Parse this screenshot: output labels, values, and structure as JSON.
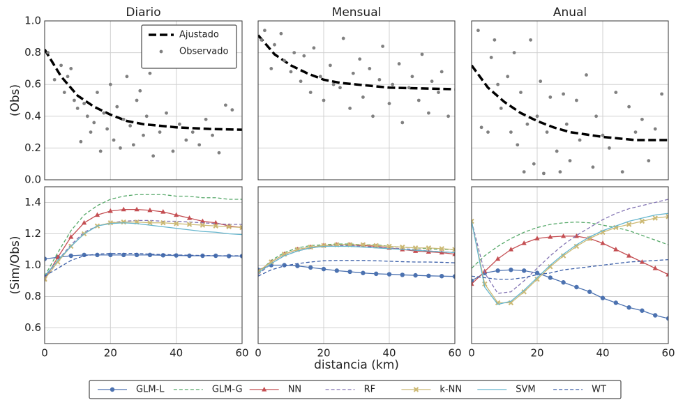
{
  "chart_data": [
    {
      "type": "scatter",
      "title": "Diario",
      "ylabel": "(Obs)",
      "xlim": [
        0,
        60
      ],
      "ylim": [
        0,
        1
      ],
      "xticks": [
        0,
        20,
        40,
        60
      ],
      "yticks": [
        {
          "value": 0,
          "label": "0.0"
        },
        0.2,
        0.4,
        0.6,
        0.8,
        {
          "value": 1,
          "label": "1.0"
        }
      ],
      "show_xtick_labels": false,
      "show_ytick_labels": true,
      "grid": true,
      "legend": "upper right",
      "series": [
        {
          "name": "Ajustado",
          "color": "#000000",
          "linestyle": "dashed",
          "linewidth": 3.5,
          "marker": "none",
          "x": [
            0,
            5,
            10,
            15,
            20,
            25,
            30,
            40,
            50,
            60
          ],
          "values": [
            0.82,
            0.65,
            0.53,
            0.46,
            0.41,
            0.37,
            0.35,
            0.33,
            0.32,
            0.315
          ]
        },
        {
          "name": "Observado",
          "color": "#808080",
          "linestyle": "none",
          "marker": "dot",
          "x": [
            1,
            3,
            5,
            6,
            7,
            8,
            9,
            10,
            11,
            12,
            13,
            14,
            15,
            16,
            17,
            18,
            19,
            20,
            21,
            22,
            23,
            24,
            25,
            26,
            27,
            28,
            29,
            30,
            31,
            32,
            33,
            35,
            37,
            39,
            41,
            43,
            45,
            47,
            49,
            51,
            53,
            55,
            57
          ],
          "values": [
            0.8,
            0.63,
            0.72,
            0.55,
            0.65,
            0.7,
            0.5,
            0.45,
            0.24,
            0.48,
            0.4,
            0.3,
            0.36,
            0.55,
            0.18,
            0.42,
            0.32,
            0.6,
            0.25,
            0.46,
            0.2,
            0.38,
            0.65,
            0.34,
            0.22,
            0.5,
            0.56,
            0.28,
            0.4,
            0.67,
            0.15,
            0.3,
            0.42,
            0.18,
            0.35,
            0.25,
            0.3,
            0.22,
            0.38,
            0.28,
            0.17,
            0.47,
            0.44
          ]
        }
      ]
    },
    {
      "type": "scatter",
      "title": "Mensual",
      "xlim": [
        0,
        60
      ],
      "ylim": [
        0,
        1
      ],
      "xticks": [
        0,
        20,
        40,
        60
      ],
      "yticks": [
        0,
        0.2,
        0.4,
        0.6,
        0.8,
        1
      ],
      "show_xtick_labels": false,
      "show_ytick_labels": false,
      "grid": true,
      "series": [
        {
          "color": "#000000",
          "linestyle": "dashed",
          "linewidth": 3.5,
          "marker": "none",
          "x": [
            0,
            5,
            10,
            15,
            20,
            25,
            30,
            40,
            50,
            60
          ],
          "values": [
            0.91,
            0.79,
            0.72,
            0.67,
            0.63,
            0.61,
            0.6,
            0.58,
            0.575,
            0.57
          ]
        },
        {
          "color": "#808080",
          "linestyle": "none",
          "marker": "dot",
          "x": [
            1,
            2,
            4,
            5,
            7,
            8,
            10,
            11,
            13,
            14,
            16,
            17,
            19,
            20,
            22,
            23,
            25,
            26,
            28,
            29,
            31,
            32,
            34,
            35,
            37,
            38,
            40,
            41,
            43,
            44,
            46,
            47,
            49,
            50,
            52,
            53,
            55,
            56,
            58
          ],
          "values": [
            0.88,
            0.94,
            0.7,
            0.85,
            0.92,
            0.75,
            0.68,
            0.8,
            0.62,
            0.78,
            0.55,
            0.83,
            0.65,
            0.5,
            0.72,
            0.6,
            0.58,
            0.89,
            0.45,
            0.67,
            0.76,
            0.52,
            0.7,
            0.4,
            0.63,
            0.84,
            0.48,
            0.6,
            0.73,
            0.36,
            0.58,
            0.65,
            0.5,
            0.79,
            0.42,
            0.62,
            0.55,
            0.68,
            0.4
          ]
        }
      ]
    },
    {
      "type": "scatter",
      "title": "Anual",
      "xlim": [
        0,
        60
      ],
      "ylim": [
        0,
        1
      ],
      "xticks": [
        0,
        20,
        40,
        60
      ],
      "yticks": [
        0,
        0.2,
        0.4,
        0.6,
        0.8,
        1
      ],
      "show_xtick_labels": false,
      "show_ytick_labels": false,
      "grid": true,
      "series": [
        {
          "color": "#000000",
          "linestyle": "dashed",
          "linewidth": 3.5,
          "marker": "none",
          "x": [
            0,
            5,
            10,
            15,
            20,
            25,
            30,
            40,
            50,
            60
          ],
          "values": [
            0.72,
            0.58,
            0.49,
            0.42,
            0.37,
            0.33,
            0.3,
            0.27,
            0.25,
            0.25
          ]
        },
        {
          "color": "#808080",
          "linestyle": "none",
          "marker": "dot",
          "x": [
            2,
            3,
            5,
            6,
            7,
            8,
            9,
            11,
            12,
            13,
            14,
            15,
            16,
            17,
            18,
            19,
            20,
            21,
            22,
            23,
            24,
            26,
            27,
            28,
            29,
            30,
            32,
            33,
            35,
            37,
            38,
            40,
            42,
            44,
            46,
            48,
            50,
            52,
            54,
            56,
            58
          ],
          "values": [
            0.94,
            0.33,
            0.3,
            0.77,
            0.88,
            0.6,
            0.45,
            0.65,
            0.3,
            0.8,
            0.22,
            0.55,
            0.05,
            0.35,
            0.88,
            0.1,
            0.4,
            0.62,
            0.04,
            0.3,
            0.52,
            0.18,
            0.05,
            0.54,
            0.35,
            0.12,
            0.5,
            0.25,
            0.66,
            0.08,
            0.4,
            0.28,
            0.2,
            0.55,
            0.05,
            0.46,
            0.3,
            0.38,
            0.12,
            0.32,
            0.54
          ]
        }
      ]
    },
    {
      "type": "line",
      "ylabel": "(Sim/Obs)",
      "xlim": [
        0,
        60
      ],
      "ylim": [
        0.5,
        1.5
      ],
      "xticks": [
        0,
        20,
        40,
        60
      ],
      "yticks": [
        0.6,
        0.8,
        {
          "value": 1,
          "label": "1.0"
        },
        1.2,
        1.4
      ],
      "show_xtick_labels": true,
      "show_ytick_labels": true,
      "grid": true,
      "legend": "lower center",
      "x": [
        0,
        4,
        8,
        12,
        16,
        20,
        24,
        28,
        32,
        36,
        40,
        44,
        48,
        52,
        56,
        60
      ],
      "series": [
        {
          "name": "GLM-L",
          "color": "#4c72b0",
          "linestyle": "solid",
          "marker": "circle",
          "values": [
            1.04,
            1.05,
            1.06,
            1.065,
            1.065,
            1.065,
            1.065,
            1.065,
            1.065,
            1.063,
            1.062,
            1.06,
            1.06,
            1.06,
            1.058,
            1.058
          ]
        },
        {
          "name": "GLM-G",
          "color": "#55a868",
          "linestyle": "dashed",
          "marker": "none",
          "values": [
            0.93,
            1.08,
            1.22,
            1.32,
            1.38,
            1.42,
            1.44,
            1.45,
            1.45,
            1.45,
            1.44,
            1.44,
            1.43,
            1.43,
            1.42,
            1.42
          ]
        },
        {
          "name": "NN",
          "color": "#c44e52",
          "linestyle": "solid",
          "marker": "triangle",
          "values": [
            0.91,
            1.05,
            1.18,
            1.27,
            1.32,
            1.345,
            1.355,
            1.355,
            1.35,
            1.34,
            1.32,
            1.3,
            1.28,
            1.27,
            1.25,
            1.24
          ]
        },
        {
          "name": "RF",
          "color": "#8172b2",
          "linestyle": "dashed",
          "marker": "none",
          "values": [
            0.92,
            1.03,
            1.13,
            1.21,
            1.25,
            1.27,
            1.28,
            1.285,
            1.285,
            1.28,
            1.28,
            1.275,
            1.27,
            1.265,
            1.26,
            1.26
          ]
        },
        {
          "name": "k-NN",
          "color": "#ccb974",
          "linestyle": "solid",
          "marker": "x",
          "values": [
            0.91,
            1.02,
            1.12,
            1.2,
            1.25,
            1.27,
            1.275,
            1.275,
            1.27,
            1.27,
            1.265,
            1.26,
            1.255,
            1.25,
            1.245,
            1.24
          ]
        },
        {
          "name": "SVM",
          "color": "#64b5cd",
          "linestyle": "solid",
          "marker": "none",
          "values": [
            0.93,
            1.03,
            1.12,
            1.2,
            1.25,
            1.265,
            1.27,
            1.265,
            1.255,
            1.245,
            1.235,
            1.225,
            1.215,
            1.21,
            1.2,
            1.195
          ]
        },
        {
          "name": "WT",
          "color": "#3a5ea8",
          "linestyle": "dashed",
          "marker": "none",
          "values": [
            0.93,
            0.98,
            1.03,
            1.06,
            1.07,
            1.075,
            1.075,
            1.075,
            1.07,
            1.068,
            1.065,
            1.063,
            1.062,
            1.06,
            1.06,
            1.06
          ]
        }
      ]
    },
    {
      "type": "line",
      "xlabel": "distancia (km)",
      "xlim": [
        0,
        60
      ],
      "ylim": [
        0.5,
        1.5
      ],
      "xticks": [
        0,
        20,
        40,
        60
      ],
      "yticks": [
        0.6,
        0.8,
        1,
        1.2,
        1.4
      ],
      "show_xtick_labels": true,
      "show_ytick_labels": false,
      "grid": true,
      "x": [
        0,
        4,
        8,
        12,
        16,
        20,
        24,
        28,
        32,
        36,
        40,
        44,
        48,
        52,
        56,
        60
      ],
      "series": [
        {
          "color": "#4c72b0",
          "linestyle": "solid",
          "marker": "circle",
          "values": [
            0.97,
            1.0,
            1.0,
            0.995,
            0.985,
            0.975,
            0.965,
            0.958,
            0.95,
            0.945,
            0.942,
            0.938,
            0.935,
            0.932,
            0.93,
            0.928
          ]
        },
        {
          "color": "#55a868",
          "linestyle": "dashed",
          "marker": "none",
          "values": [
            0.95,
            1.03,
            1.08,
            1.11,
            1.125,
            1.13,
            1.135,
            1.135,
            1.13,
            1.13,
            1.12,
            1.115,
            1.11,
            1.105,
            1.1,
            1.1
          ]
        },
        {
          "color": "#c44e52",
          "linestyle": "solid",
          "marker": "triangle",
          "values": [
            0.96,
            1.02,
            1.07,
            1.1,
            1.115,
            1.125,
            1.13,
            1.13,
            1.125,
            1.12,
            1.11,
            1.1,
            1.09,
            1.085,
            1.08,
            1.07
          ]
        },
        {
          "color": "#8172b2",
          "linestyle": "dashed",
          "marker": "none",
          "values": [
            0.94,
            1.01,
            1.06,
            1.09,
            1.11,
            1.12,
            1.125,
            1.125,
            1.12,
            1.115,
            1.11,
            1.105,
            1.1,
            1.09,
            1.085,
            1.08
          ]
        },
        {
          "color": "#ccb974",
          "linestyle": "solid",
          "marker": "x",
          "values": [
            0.96,
            1.02,
            1.07,
            1.1,
            1.115,
            1.125,
            1.13,
            1.13,
            1.13,
            1.125,
            1.12,
            1.115,
            1.11,
            1.11,
            1.105,
            1.1
          ]
        },
        {
          "color": "#64b5cd",
          "linestyle": "solid",
          "marker": "none",
          "values": [
            0.95,
            1.01,
            1.06,
            1.09,
            1.11,
            1.12,
            1.12,
            1.12,
            1.115,
            1.11,
            1.105,
            1.1,
            1.095,
            1.09,
            1.085,
            1.08
          ]
        },
        {
          "color": "#3a5ea8",
          "linestyle": "dashed",
          "marker": "none",
          "values": [
            0.93,
            0.97,
            0.995,
            1.01,
            1.02,
            1.028,
            1.03,
            1.03,
            1.03,
            1.028,
            1.025,
            1.022,
            1.02,
            1.02,
            1.018,
            1.015
          ]
        }
      ]
    },
    {
      "type": "line",
      "xlim": [
        0,
        60
      ],
      "ylim": [
        0.5,
        1.5
      ],
      "xticks": [
        0,
        20,
        40,
        60
      ],
      "yticks": [
        0.6,
        0.8,
        1,
        1.2,
        1.4
      ],
      "show_xtick_labels": true,
      "show_ytick_labels": false,
      "grid": true,
      "x": [
        0,
        4,
        8,
        12,
        16,
        20,
        24,
        28,
        32,
        36,
        40,
        44,
        48,
        52,
        56,
        60
      ],
      "series": [
        {
          "color": "#4c72b0",
          "linestyle": "solid",
          "marker": "circle",
          "values": [
            0.9,
            0.95,
            0.965,
            0.97,
            0.965,
            0.95,
            0.92,
            0.89,
            0.86,
            0.83,
            0.79,
            0.76,
            0.73,
            0.71,
            0.68,
            0.66
          ]
        },
        {
          "color": "#55a868",
          "linestyle": "dashed",
          "marker": "none",
          "values": [
            0.98,
            1.06,
            1.12,
            1.17,
            1.21,
            1.24,
            1.26,
            1.27,
            1.275,
            1.27,
            1.255,
            1.24,
            1.22,
            1.19,
            1.16,
            1.13
          ]
        },
        {
          "color": "#c44e52",
          "linestyle": "solid",
          "marker": "triangle",
          "values": [
            0.88,
            0.96,
            1.04,
            1.1,
            1.14,
            1.17,
            1.18,
            1.185,
            1.185,
            1.17,
            1.14,
            1.1,
            1.06,
            1.02,
            0.98,
            0.94
          ]
        },
        {
          "color": "#8172b2",
          "linestyle": "dashed",
          "marker": "none",
          "values": [
            1.28,
            0.95,
            0.82,
            0.83,
            0.9,
            0.98,
            1.06,
            1.13,
            1.19,
            1.24,
            1.29,
            1.33,
            1.36,
            1.38,
            1.4,
            1.42
          ]
        },
        {
          "color": "#ccb974",
          "linestyle": "solid",
          "marker": "x",
          "values": [
            1.28,
            0.88,
            0.76,
            0.76,
            0.83,
            0.91,
            0.99,
            1.06,
            1.12,
            1.17,
            1.21,
            1.24,
            1.26,
            1.28,
            1.3,
            1.31
          ]
        },
        {
          "color": "#64b5cd",
          "linestyle": "solid",
          "marker": "none",
          "values": [
            1.28,
            0.86,
            0.75,
            0.77,
            0.84,
            0.92,
            1.0,
            1.07,
            1.13,
            1.18,
            1.22,
            1.25,
            1.28,
            1.3,
            1.32,
            1.33
          ]
        },
        {
          "color": "#3a5ea8",
          "linestyle": "dashed",
          "marker": "none",
          "values": [
            0.93,
            0.92,
            0.91,
            0.91,
            0.92,
            0.94,
            0.95,
            0.97,
            0.98,
            0.99,
            1.0,
            1.01,
            1.02,
            1.025,
            1.03,
            1.035
          ]
        }
      ]
    }
  ]
}
